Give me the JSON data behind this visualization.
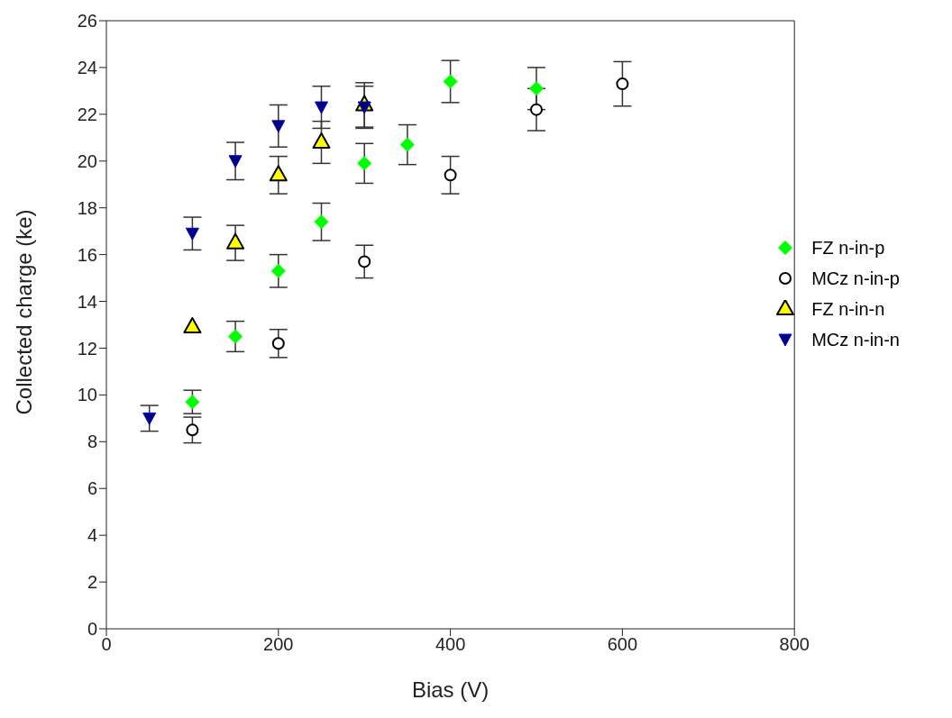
{
  "chart_data": {
    "type": "scatter",
    "xlabel": "Bias (V)",
    "ylabel": "Collected charge (ke)",
    "xlim": [
      0,
      800
    ],
    "xticks": [
      0,
      200,
      400,
      600,
      800
    ],
    "ylim": [
      0,
      26
    ],
    "yticks": [
      0,
      2,
      4,
      6,
      8,
      10,
      12,
      14,
      16,
      18,
      20,
      22,
      24,
      26
    ],
    "grid": false,
    "legend": "right",
    "series": [
      {
        "name": "FZ n-in-p",
        "color": "#00ff00",
        "marker": "diamond",
        "x": [
          100,
          150,
          200,
          250,
          300,
          350,
          400,
          500
        ],
        "values": [
          9.7,
          12.5,
          15.3,
          17.4,
          19.9,
          20.7,
          23.4,
          23.1
        ],
        "errors": [
          0.5,
          0.65,
          0.7,
          0.8,
          0.85,
          0.85,
          0.9,
          0.9
        ]
      },
      {
        "name": "MCz n-in-p",
        "color": "#000000",
        "marker": "circle",
        "x": [
          100,
          200,
          300,
          400,
          500,
          600
        ],
        "values": [
          8.5,
          12.2,
          15.7,
          19.4,
          22.2,
          23.3
        ],
        "errors": [
          0.55,
          0.6,
          0.7,
          0.8,
          0.9,
          0.95
        ]
      },
      {
        "name": "FZ n-in-n",
        "color": "#ffff00",
        "marker": "triangle",
        "x": [
          100,
          150,
          200,
          250,
          300
        ],
        "values": [
          12.9,
          16.5,
          19.4,
          20.8,
          22.4
        ],
        "errors": [
          null,
          0.75,
          0.8,
          0.9,
          0.95
        ]
      },
      {
        "name": "MCz n-in-n",
        "color": "#000080",
        "marker": "triangle-down",
        "x": [
          50,
          100,
          150,
          200,
          250,
          300
        ],
        "values": [
          9.0,
          16.9,
          20.0,
          21.5,
          22.3,
          22.3
        ],
        "errors": [
          0.55,
          0.7,
          0.8,
          0.9,
          0.9,
          0.9
        ]
      }
    ]
  }
}
